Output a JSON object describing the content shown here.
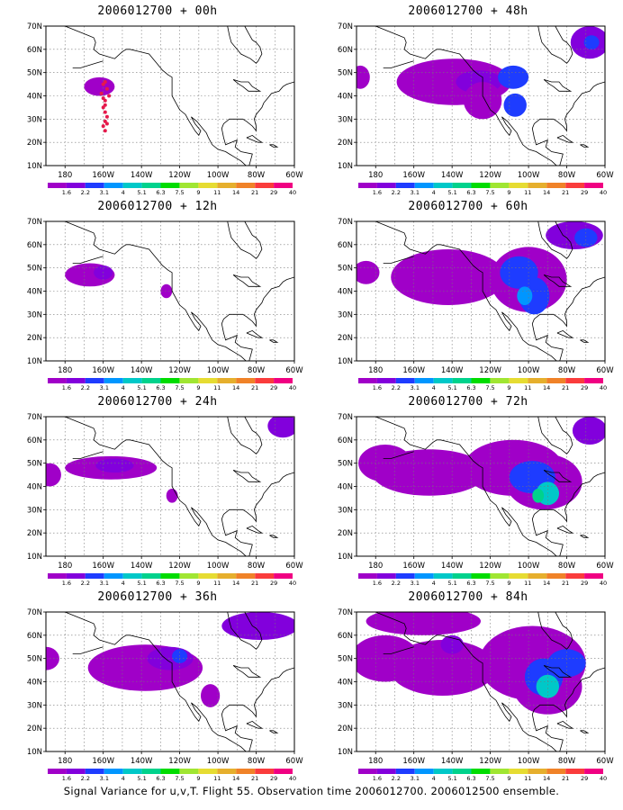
{
  "panels": [
    {
      "title": "2006012700 + 00h"
    },
    {
      "title": "2006012700 + 48h"
    },
    {
      "title": "2006012700 + 12h"
    },
    {
      "title": "2006012700 + 60h"
    },
    {
      "title": "2006012700 + 24h"
    },
    {
      "title": "2006012700 + 72h"
    },
    {
      "title": "2006012700 + 36h"
    },
    {
      "title": "2006012700 + 84h"
    }
  ],
  "axes": {
    "lat_labels": [
      "70N",
      "60N",
      "50N",
      "40N",
      "30N",
      "20N",
      "10N"
    ],
    "lon_labels": [
      "180",
      "160W",
      "140W",
      "120W",
      "100W",
      "80W",
      "60W"
    ]
  },
  "colorbar": {
    "labels": [
      "1.6",
      "2.2",
      "3.1",
      "4",
      "5.1",
      "6.3",
      "7.5",
      "9",
      "11",
      "14",
      "21",
      "29",
      "40"
    ],
    "colors": [
      "#a000c8",
      "#8200dc",
      "#1e3cff",
      "#0096ff",
      "#00c8c8",
      "#00d28c",
      "#00dc00",
      "#a0e632",
      "#e6dc32",
      "#e6af2d",
      "#f08228",
      "#fa3c3c",
      "#f00082"
    ]
  },
  "footer": "Signal Variance for u,v,T. Flight 55. Observation time 2006012700. 2006012500 ensemble."
}
